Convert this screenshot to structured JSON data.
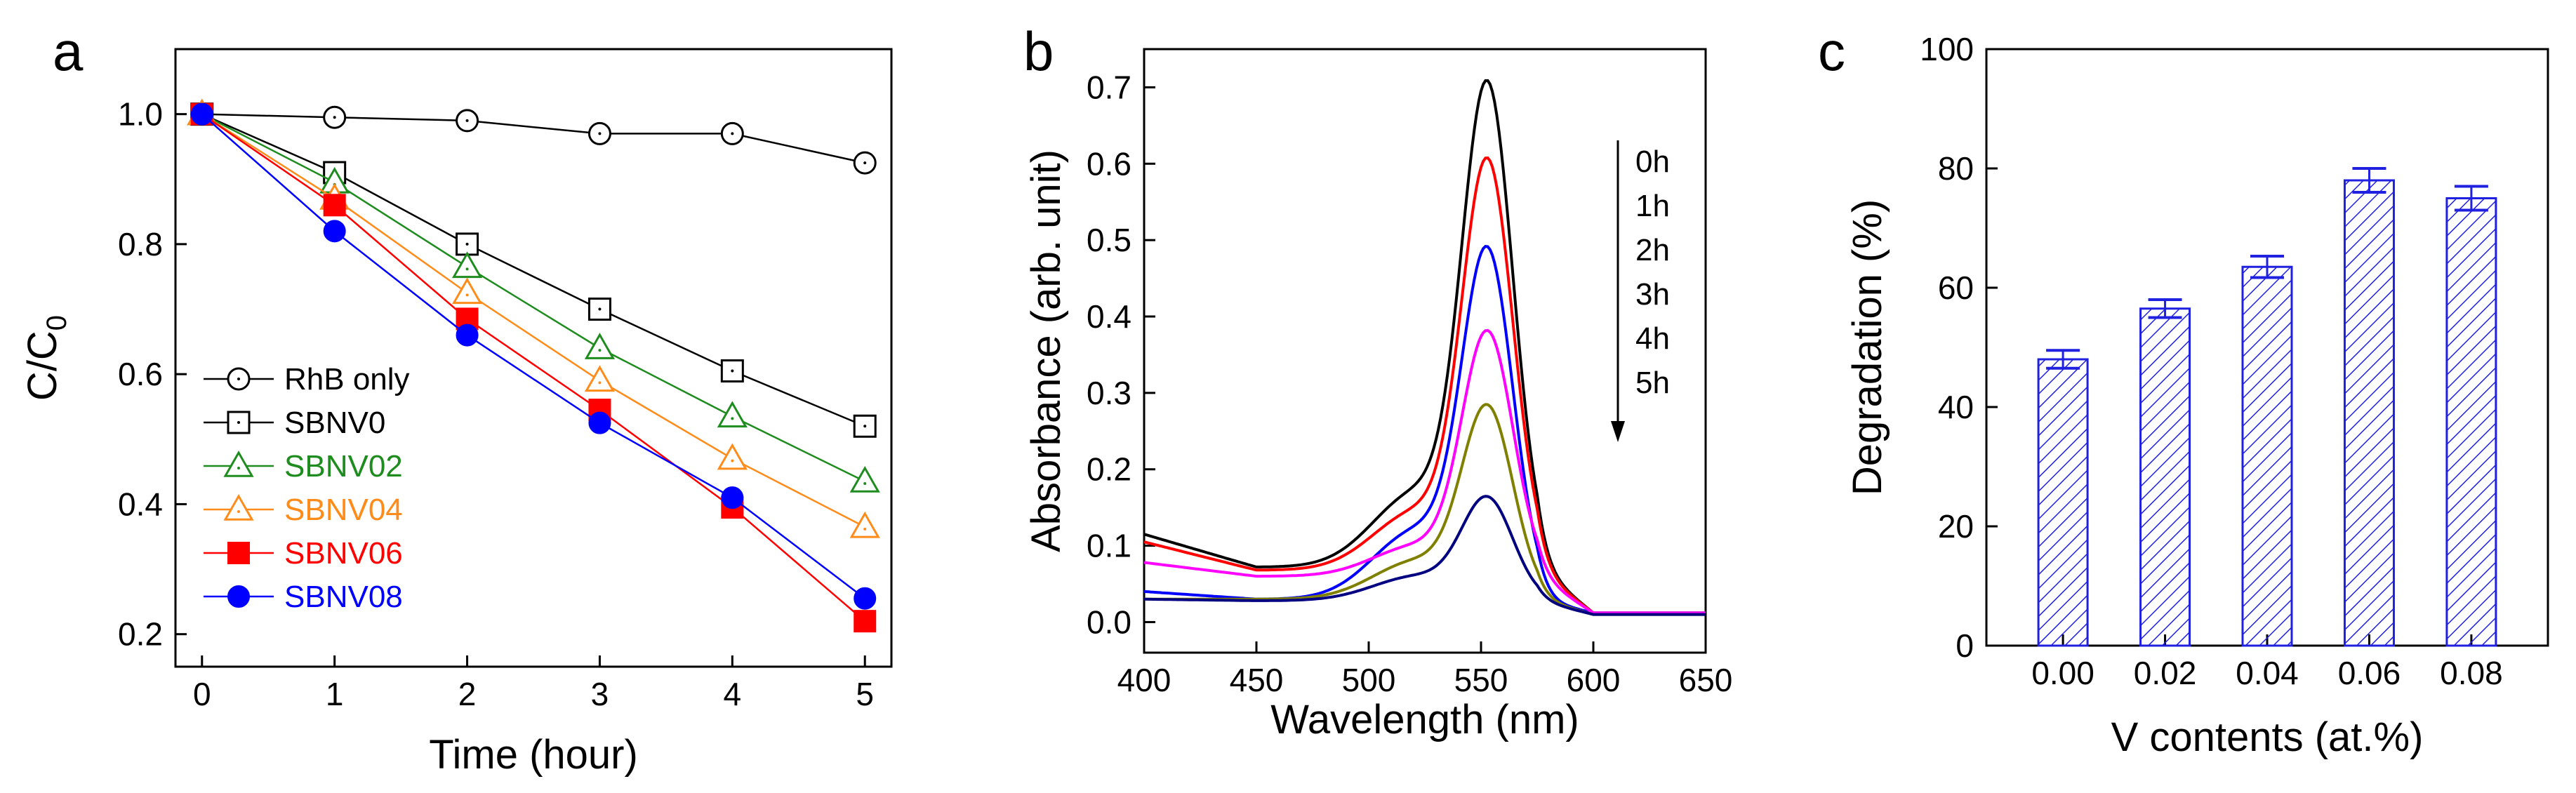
{
  "chart_data": [
    {
      "panel": "a",
      "type": "line",
      "xlabel": "Time (hour)",
      "ylabel": "C/C",
      "ylabel_sub": "0",
      "xlim": [
        -0.2,
        5.2
      ],
      "ylim": [
        0.15,
        1.1
      ],
      "x_ticks": [
        0,
        1,
        2,
        3,
        4,
        5
      ],
      "x_tick_labels": [
        "0",
        "1",
        "2",
        "3",
        "4",
        "5"
      ],
      "y_ticks": [
        0.2,
        0.4,
        0.6,
        0.8,
        1.0
      ],
      "y_tick_labels": [
        "0.2",
        "0.4",
        "0.6",
        "0.8",
        "1.0"
      ],
      "legend_position": "bottom-left",
      "x": [
        0,
        1,
        2,
        3,
        4,
        5
      ],
      "series": [
        {
          "name": "RhB only",
          "color": "#000000",
          "marker": "circle-open",
          "label_color": "#000000",
          "values": [
            1.0,
            0.995,
            0.99,
            0.97,
            0.97,
            0.925
          ]
        },
        {
          "name": "SBNV0",
          "color": "#000000",
          "marker": "square-open",
          "label_color": "#000000",
          "values": [
            1.0,
            0.91,
            0.8,
            0.7,
            0.605,
            0.52
          ]
        },
        {
          "name": "SBNV02",
          "color": "#1e8c1e",
          "marker": "triangle-open",
          "label_color": "#1e8c1e",
          "values": [
            1.0,
            0.895,
            0.765,
            0.64,
            0.535,
            0.435
          ]
        },
        {
          "name": "SBNV04",
          "color": "#ff8c1a",
          "marker": "triangle-open",
          "label_color": "#ff8c1a",
          "values": [
            1.0,
            0.87,
            0.725,
            0.59,
            0.47,
            0.365
          ]
        },
        {
          "name": "SBNV06",
          "color": "#ff0000",
          "marker": "square-filled",
          "label_color": "#ff0000",
          "values": [
            1.0,
            0.86,
            0.685,
            0.545,
            0.395,
            0.22
          ]
        },
        {
          "name": "SBNV08",
          "color": "#0000ff",
          "marker": "circle-filled",
          "label_color": "#0000ff",
          "values": [
            1.0,
            0.82,
            0.66,
            0.525,
            0.41,
            0.255
          ]
        }
      ]
    },
    {
      "panel": "b",
      "type": "line",
      "xlabel": "Wavelength (nm)",
      "ylabel": "Absorbance (arb. unit)",
      "xlim": [
        400,
        650
      ],
      "ylim": [
        -0.04,
        0.75
      ],
      "x_ticks": [
        400,
        450,
        500,
        550,
        600,
        650
      ],
      "x_tick_labels": [
        "400",
        "450",
        "500",
        "550",
        "600",
        "650"
      ],
      "y_ticks": [
        0.0,
        0.1,
        0.2,
        0.3,
        0.4,
        0.5,
        0.6,
        0.7
      ],
      "y_tick_labels": [
        "0.0",
        "0.1",
        "0.2",
        "0.3",
        "0.4",
        "0.5",
        "0.6",
        "0.7"
      ],
      "annotation_labels": [
        "0h",
        "1h",
        "2h",
        "3h",
        "4h",
        "5h"
      ],
      "annotation_arrow": "down",
      "series": [
        {
          "name": "0h",
          "color": "#000000",
          "peak": 0.68,
          "shoulder": 0.17,
          "start": 0.115,
          "trough": 0.072,
          "tail": 0.012
        },
        {
          "name": "1h",
          "color": "#ff0000",
          "peak": 0.585,
          "shoulder": 0.145,
          "start": 0.105,
          "trough": 0.068,
          "tail": 0.012
        },
        {
          "name": "2h",
          "color": "#0000ff",
          "peak": 0.465,
          "shoulder": 0.12,
          "start": 0.04,
          "trough": 0.03,
          "tail": 0.012
        },
        {
          "name": "3h",
          "color": "#ff00ff",
          "peak": 0.37,
          "shoulder": 0.1,
          "start": 0.078,
          "trough": 0.06,
          "tail": 0.012
        },
        {
          "name": "4h",
          "color": "#808000",
          "peak": 0.27,
          "shoulder": 0.08,
          "start": 0.03,
          "trough": 0.03,
          "tail": 0.01
        },
        {
          "name": "5h",
          "color": "#000080",
          "peak": 0.155,
          "shoulder": 0.06,
          "start": 0.03,
          "trough": 0.028,
          "tail": 0.01
        }
      ]
    },
    {
      "panel": "c",
      "type": "bar",
      "xlabel": "V contents (at.%)",
      "ylabel": "Degradation (%)",
      "ylim": [
        0,
        100
      ],
      "y_ticks": [
        0,
        20,
        40,
        60,
        80,
        100
      ],
      "y_tick_labels": [
        "0",
        "20",
        "40",
        "60",
        "80",
        "100"
      ],
      "categories": [
        "0.00",
        "0.02",
        "0.04",
        "0.06",
        "0.08"
      ],
      "values": [
        48,
        56.5,
        63.5,
        78,
        75
      ],
      "errors": [
        1.5,
        1.5,
        1.8,
        2.0,
        2.0
      ],
      "bar_color": "#2020e0",
      "fill": "hatched"
    }
  ],
  "panel_labels": [
    "a",
    "b",
    "c"
  ]
}
